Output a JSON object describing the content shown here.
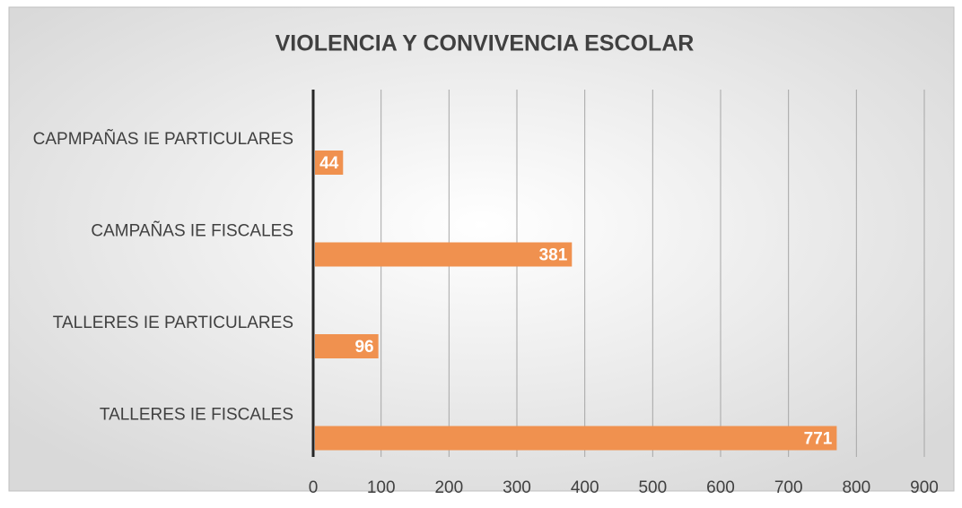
{
  "chart_data": {
    "type": "hbar",
    "title": "VIOLENCIA Y CONVIVENCIA ESCOLAR",
    "categories": [
      "CAPMPAÑAS IE PARTICULARES",
      "CAMPAÑAS IE FISCALES",
      "TALLERES IE PARTICULARES",
      "TALLERES IE FISCALES"
    ],
    "values": [
      44,
      381,
      96,
      771
    ],
    "color": "#f0914f",
    "xlim": [
      0,
      900
    ],
    "xticks": [
      0,
      100,
      200,
      300,
      400,
      500,
      600,
      700,
      800,
      900
    ],
    "grid": true
  }
}
